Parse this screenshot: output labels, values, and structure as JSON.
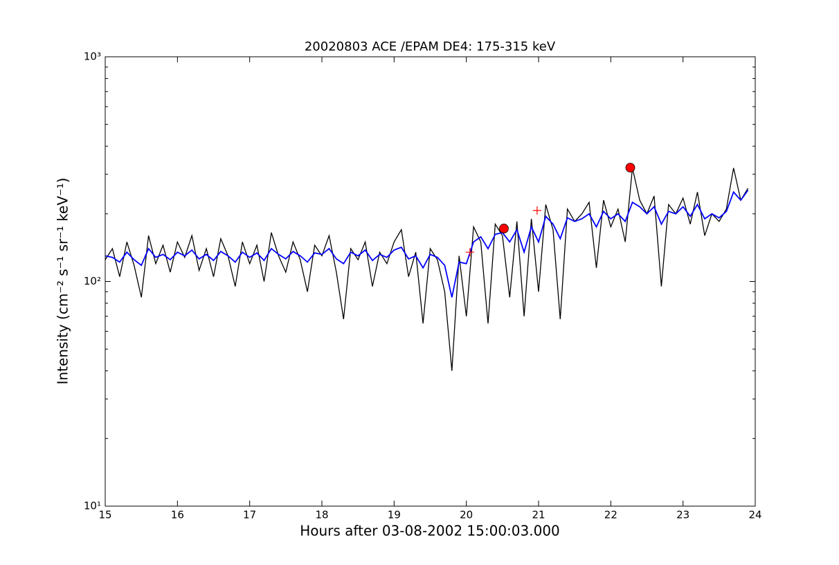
{
  "chart_data": {
    "type": "line",
    "title": "20020803 ACE /EPAM DE4: 175-315 keV",
    "xlabel": "Hours after 03-08-2002 15:00:03.000",
    "ylabel": "Intensity (cm⁻² s⁻¹ sr⁻¹ keV⁻¹)",
    "yscale": "log",
    "xlim": [
      15,
      24
    ],
    "xticks": [
      15,
      16,
      17,
      18,
      19,
      20,
      21,
      22,
      23,
      24
    ],
    "ylim": [
      10,
      1000
    ],
    "yticks": [
      {
        "value": 10,
        "label": "10¹"
      },
      {
        "value": 100,
        "label": "10²"
      },
      {
        "value": 1000,
        "label": "10³"
      }
    ],
    "yminorticks": [
      20,
      30,
      40,
      50,
      60,
      70,
      80,
      90,
      200,
      300,
      400,
      500,
      600,
      700,
      800,
      900
    ],
    "x": [
      15.0,
      15.1,
      15.2,
      15.3,
      15.4,
      15.5,
      15.6,
      15.7,
      15.8,
      15.9,
      16.0,
      16.1,
      16.2,
      16.3,
      16.4,
      16.5,
      16.6,
      16.7,
      16.8,
      16.9,
      17.0,
      17.1,
      17.2,
      17.3,
      17.4,
      17.5,
      17.6,
      17.7,
      17.8,
      17.9,
      18.0,
      18.1,
      18.2,
      18.3,
      18.4,
      18.5,
      18.6,
      18.7,
      18.8,
      18.9,
      19.0,
      19.1,
      19.2,
      19.3,
      19.4,
      19.5,
      19.6,
      19.7,
      19.8,
      19.9,
      20.0,
      20.1,
      20.2,
      20.3,
      20.4,
      20.5,
      20.6,
      20.7,
      20.8,
      20.9,
      21.0,
      21.1,
      21.2,
      21.3,
      21.4,
      21.5,
      21.6,
      21.7,
      21.8,
      21.9,
      22.0,
      22.1,
      22.2,
      22.3,
      22.4,
      22.5,
      22.6,
      22.7,
      22.8,
      22.9,
      23.0,
      23.1,
      23.2,
      23.3,
      23.4,
      23.5,
      23.6,
      23.7,
      23.8,
      23.9
    ],
    "series": [
      {
        "color": "#000000",
        "values": [
          125,
          140,
          105,
          150,
          118,
          85,
          160,
          120,
          145,
          110,
          150,
          128,
          160,
          112,
          140,
          105,
          155,
          130,
          95,
          150,
          120,
          145,
          100,
          165,
          130,
          110,
          150,
          125,
          90,
          145,
          130,
          160,
          110,
          68,
          140,
          125,
          150,
          95,
          135,
          120,
          150,
          170,
          105,
          135,
          65,
          140,
          125,
          90,
          40,
          130,
          70,
          175,
          150,
          65,
          180,
          160,
          85,
          185,
          70,
          190,
          90,
          220,
          170,
          68,
          210,
          185,
          200,
          225,
          115,
          230,
          175,
          210,
          150,
          320,
          230,
          200,
          240,
          95,
          220,
          200,
          235,
          180,
          250,
          160,
          200,
          185,
          210,
          320,
          230,
          260
        ]
      },
      {
        "color": "#0000ff",
        "values": [
          130,
          128,
          122,
          135,
          125,
          118,
          140,
          128,
          132,
          125,
          135,
          130,
          138,
          126,
          132,
          124,
          136,
          130,
          122,
          135,
          128,
          134,
          124,
          140,
          132,
          126,
          136,
          130,
          122,
          134,
          132,
          140,
          126,
          120,
          135,
          130,
          138,
          124,
          132,
          128,
          138,
          142,
          126,
          130,
          115,
          132,
          128,
          118,
          85,
          122,
          120,
          150,
          158,
          140,
          162,
          165,
          150,
          170,
          135,
          175,
          150,
          195,
          180,
          155,
          192,
          185,
          190,
          200,
          175,
          205,
          190,
          200,
          185,
          225,
          215,
          200,
          215,
          180,
          205,
          200,
          215,
          195,
          220,
          190,
          200,
          192,
          205,
          250,
          230,
          255
        ]
      }
    ],
    "markers": [
      {
        "marker": "circle",
        "color": "#ff0000",
        "x": [
          20.52,
          22.27
        ],
        "values": [
          172,
          321
        ]
      },
      {
        "marker": "plus",
        "color": "#ff0000",
        "x": [
          20.05,
          20.98
        ],
        "values": [
          135,
          207
        ]
      }
    ]
  }
}
